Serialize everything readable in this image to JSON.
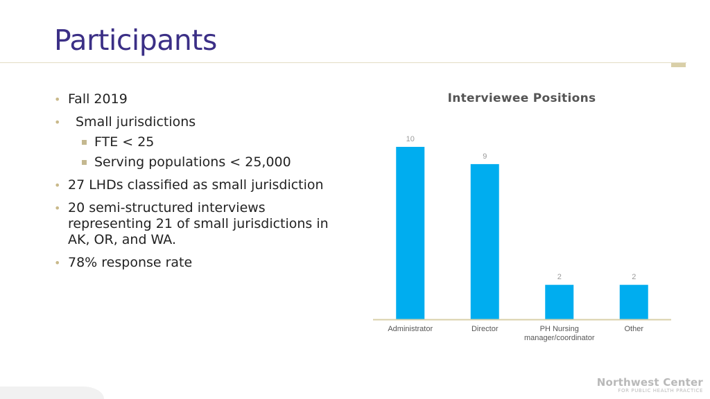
{
  "title": "Participants",
  "bullets": {
    "b1": "Fall 2019",
    "b2": "Small jurisdictions",
    "b2_sub1": "FTE < 25",
    "b2_sub2": "Serving populations < 25,000",
    "b3": "27 LHDs classified as small jurisdiction",
    "b4": "20 semi-structured interviews representing 21 of small jurisdictions in AK, OR, and WA.",
    "b5": "78% response rate"
  },
  "chart_data": {
    "type": "bar",
    "title": "Interviewee Positions",
    "categories": [
      [
        "Administrator"
      ],
      [
        "Director"
      ],
      [
        "PH Nursing",
        "manager/coordinator"
      ],
      [
        "Other"
      ]
    ],
    "values": [
      10,
      9,
      2,
      2
    ],
    "ylim": [
      0,
      10
    ],
    "grid": false,
    "bar_color": "#00adef",
    "axis_color": "#d9cfa8"
  },
  "logo": {
    "line1": "Northwest Center",
    "line2": "FOR PUBLIC HEALTH PRACTICE"
  },
  "colors": {
    "title": "#3b2f86",
    "bullet_accent": "#c9b98a"
  }
}
